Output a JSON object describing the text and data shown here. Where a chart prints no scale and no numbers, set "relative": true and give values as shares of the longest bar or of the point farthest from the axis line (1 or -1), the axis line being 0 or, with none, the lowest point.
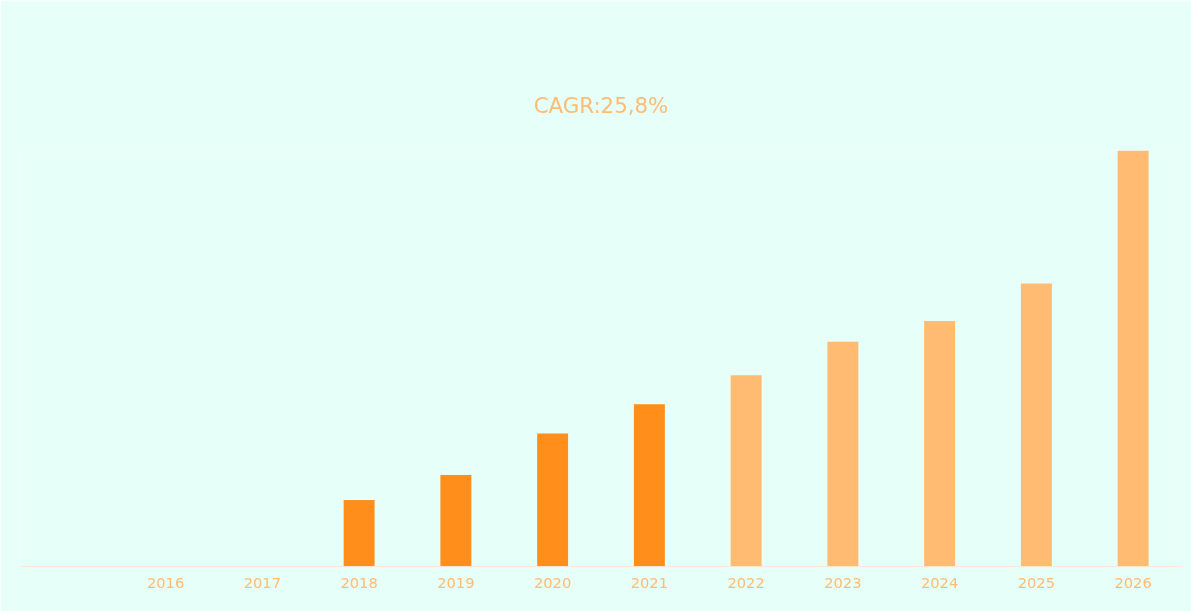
{
  "chart_data": {
    "type": "bar",
    "title": "CAGR:25,8%",
    "relative": true,
    "categories": [
      null,
      "2016",
      "2017",
      "2018",
      "2019",
      "2020",
      "2021",
      "2022",
      "2023",
      "2024",
      "2025",
      "2026"
    ],
    "values": [
      null,
      null,
      null,
      0.16,
      0.22,
      0.32,
      0.39,
      0.46,
      0.54,
      0.59,
      0.68,
      1
    ],
    "colors": [
      "#ff8f1a",
      "#ff8f1a",
      "#ff8f1a",
      "#ff8f1a",
      "#ff8f1a",
      "#ff8f1a",
      "#ff8f1a",
      "#ffbb72",
      "#ffbb72",
      "#ffbb72",
      "#ffbb72",
      "#ffbb72"
    ],
    "grid": false
  }
}
